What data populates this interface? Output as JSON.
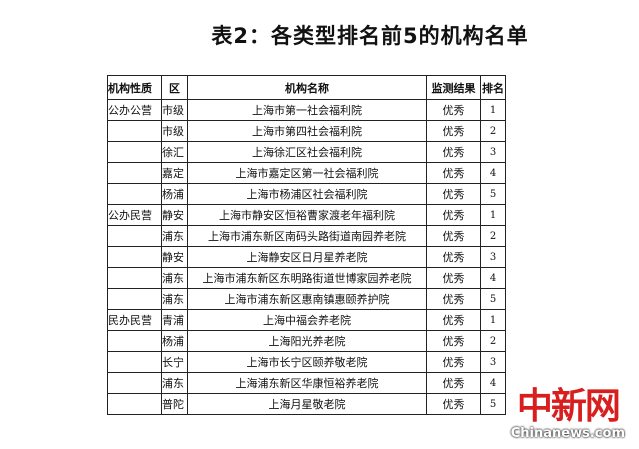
{
  "title": "表2：各类型排名前5的机构名单",
  "headers": [
    "机构性质",
    "区",
    "机构名称",
    "监测结果",
    "排名"
  ],
  "rows": [
    {
      "type": "公办公营",
      "district": "市级",
      "name": "上海市第一社会福利院",
      "result": "优秀",
      "rank": "1"
    },
    {
      "type": "",
      "district": "市级",
      "name": "上海市第四社会福利院",
      "result": "优秀",
      "rank": "2"
    },
    {
      "type": "",
      "district": "徐汇",
      "name": "上海徐汇区社会福利院",
      "result": "优秀",
      "rank": "3"
    },
    {
      "type": "",
      "district": "嘉定",
      "name": "上海市嘉定区第一社会福利院",
      "result": "优秀",
      "rank": "4"
    },
    {
      "type": "",
      "district": "杨浦",
      "name": "上海市杨浦区社会福利院",
      "result": "优秀",
      "rank": "5"
    },
    {
      "type": "公办民营",
      "district": "静安",
      "name": "上海市静安区恒裕曹家渡老年福利院",
      "result": "优秀",
      "rank": "1"
    },
    {
      "type": "",
      "district": "浦东",
      "name": "上海市浦东新区南码头路街道南园养老院",
      "result": "优秀",
      "rank": "2"
    },
    {
      "type": "",
      "district": "静安",
      "name": "上海静安区日月星养老院",
      "result": "优秀",
      "rank": "3"
    },
    {
      "type": "",
      "district": "浦东",
      "name": "上海市浦东新区东明路街道世博家园养老院",
      "result": "优秀",
      "rank": "4"
    },
    {
      "type": "",
      "district": "浦东",
      "name": "上海市浦东新区惠南镇惠颐养护院",
      "result": "优秀",
      "rank": "5"
    },
    {
      "type": "民办民营",
      "district": "青浦",
      "name": "上海中福会养老院",
      "result": "优秀",
      "rank": "1"
    },
    {
      "type": "",
      "district": "杨浦",
      "name": "上海阳光养老院",
      "result": "优秀",
      "rank": "2"
    },
    {
      "type": "",
      "district": "长宁",
      "name": "上海市长宁区颐养敬老院",
      "result": "优秀",
      "rank": "3"
    },
    {
      "type": "",
      "district": "浦东",
      "name": "上海浦东新区华康恒裕养老院",
      "result": "优秀",
      "rank": "4"
    },
    {
      "type": "",
      "district": "普陀",
      "name": "上海月星敬老院",
      "result": "优秀",
      "rank": "5"
    }
  ],
  "watermark": {
    "logo": "中新网",
    "site": "Chinanews.com",
    "color": "#d81e1e"
  }
}
